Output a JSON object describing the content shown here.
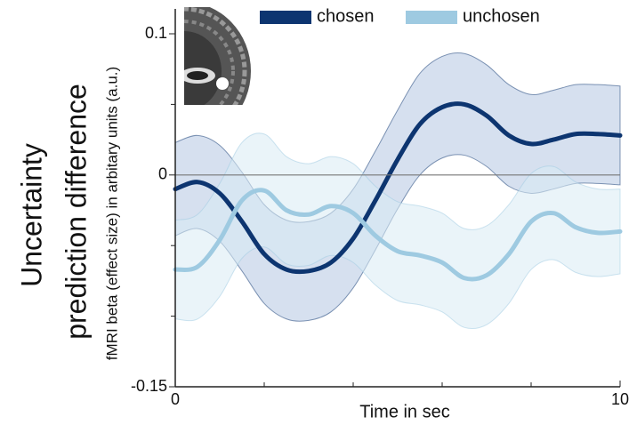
{
  "chart_data": {
    "type": "line",
    "ylabel_lines": [
      "Uncertainty",
      "prediction difference"
    ],
    "ylabel": "fMRI beta (effect size) in arbitary units (a.u.)",
    "xlabel": "Time in sec",
    "x": [
      0,
      0.5,
      1,
      1.5,
      2,
      2.5,
      3,
      3.5,
      4,
      4.5,
      5,
      5.5,
      6,
      6.5,
      7,
      7.5,
      8,
      8.5,
      9,
      9.5,
      10
    ],
    "series": [
      {
        "name": "chosen",
        "color": "#0d3570",
        "band_color": "#b5c7e2",
        "values": [
          -0.01,
          -0.005,
          -0.013,
          -0.033,
          -0.056,
          -0.067,
          -0.068,
          -0.062,
          -0.045,
          -0.018,
          0.011,
          0.036,
          0.048,
          0.05,
          0.042,
          0.028,
          0.022,
          0.025,
          0.029,
          0.029,
          0.028
        ],
        "errors": [
          0.033,
          0.033,
          0.034,
          0.035,
          0.035,
          0.035,
          0.035,
          0.035,
          0.035,
          0.035,
          0.035,
          0.036,
          0.036,
          0.036,
          0.036,
          0.036,
          0.035,
          0.035,
          0.035,
          0.035,
          0.035
        ]
      },
      {
        "name": "unchosen",
        "color": "#9ecae1",
        "band_color": "#d8ebf4",
        "values": [
          -0.067,
          -0.065,
          -0.046,
          -0.018,
          -0.011,
          -0.025,
          -0.028,
          -0.022,
          -0.027,
          -0.043,
          -0.054,
          -0.057,
          -0.062,
          -0.073,
          -0.071,
          -0.056,
          -0.033,
          -0.027,
          -0.037,
          -0.041,
          -0.04
        ],
        "errors": [
          0.035,
          0.037,
          0.04,
          0.041,
          0.04,
          0.038,
          0.036,
          0.035,
          0.035,
          0.035,
          0.035,
          0.035,
          0.035,
          0.035,
          0.035,
          0.035,
          0.034,
          0.033,
          0.032,
          0.031,
          0.03
        ]
      }
    ],
    "xlim": [
      0,
      10
    ],
    "xticks": [
      0,
      10
    ],
    "xminorticks": [
      2,
      4,
      6,
      8
    ],
    "ylim": [
      -0.15,
      0.1
    ],
    "yticks": [
      -0.15,
      0,
      0.1
    ],
    "yminorticks": [
      -0.1,
      -0.05,
      0.05
    ],
    "reference_line": 0,
    "legend": "top"
  }
}
